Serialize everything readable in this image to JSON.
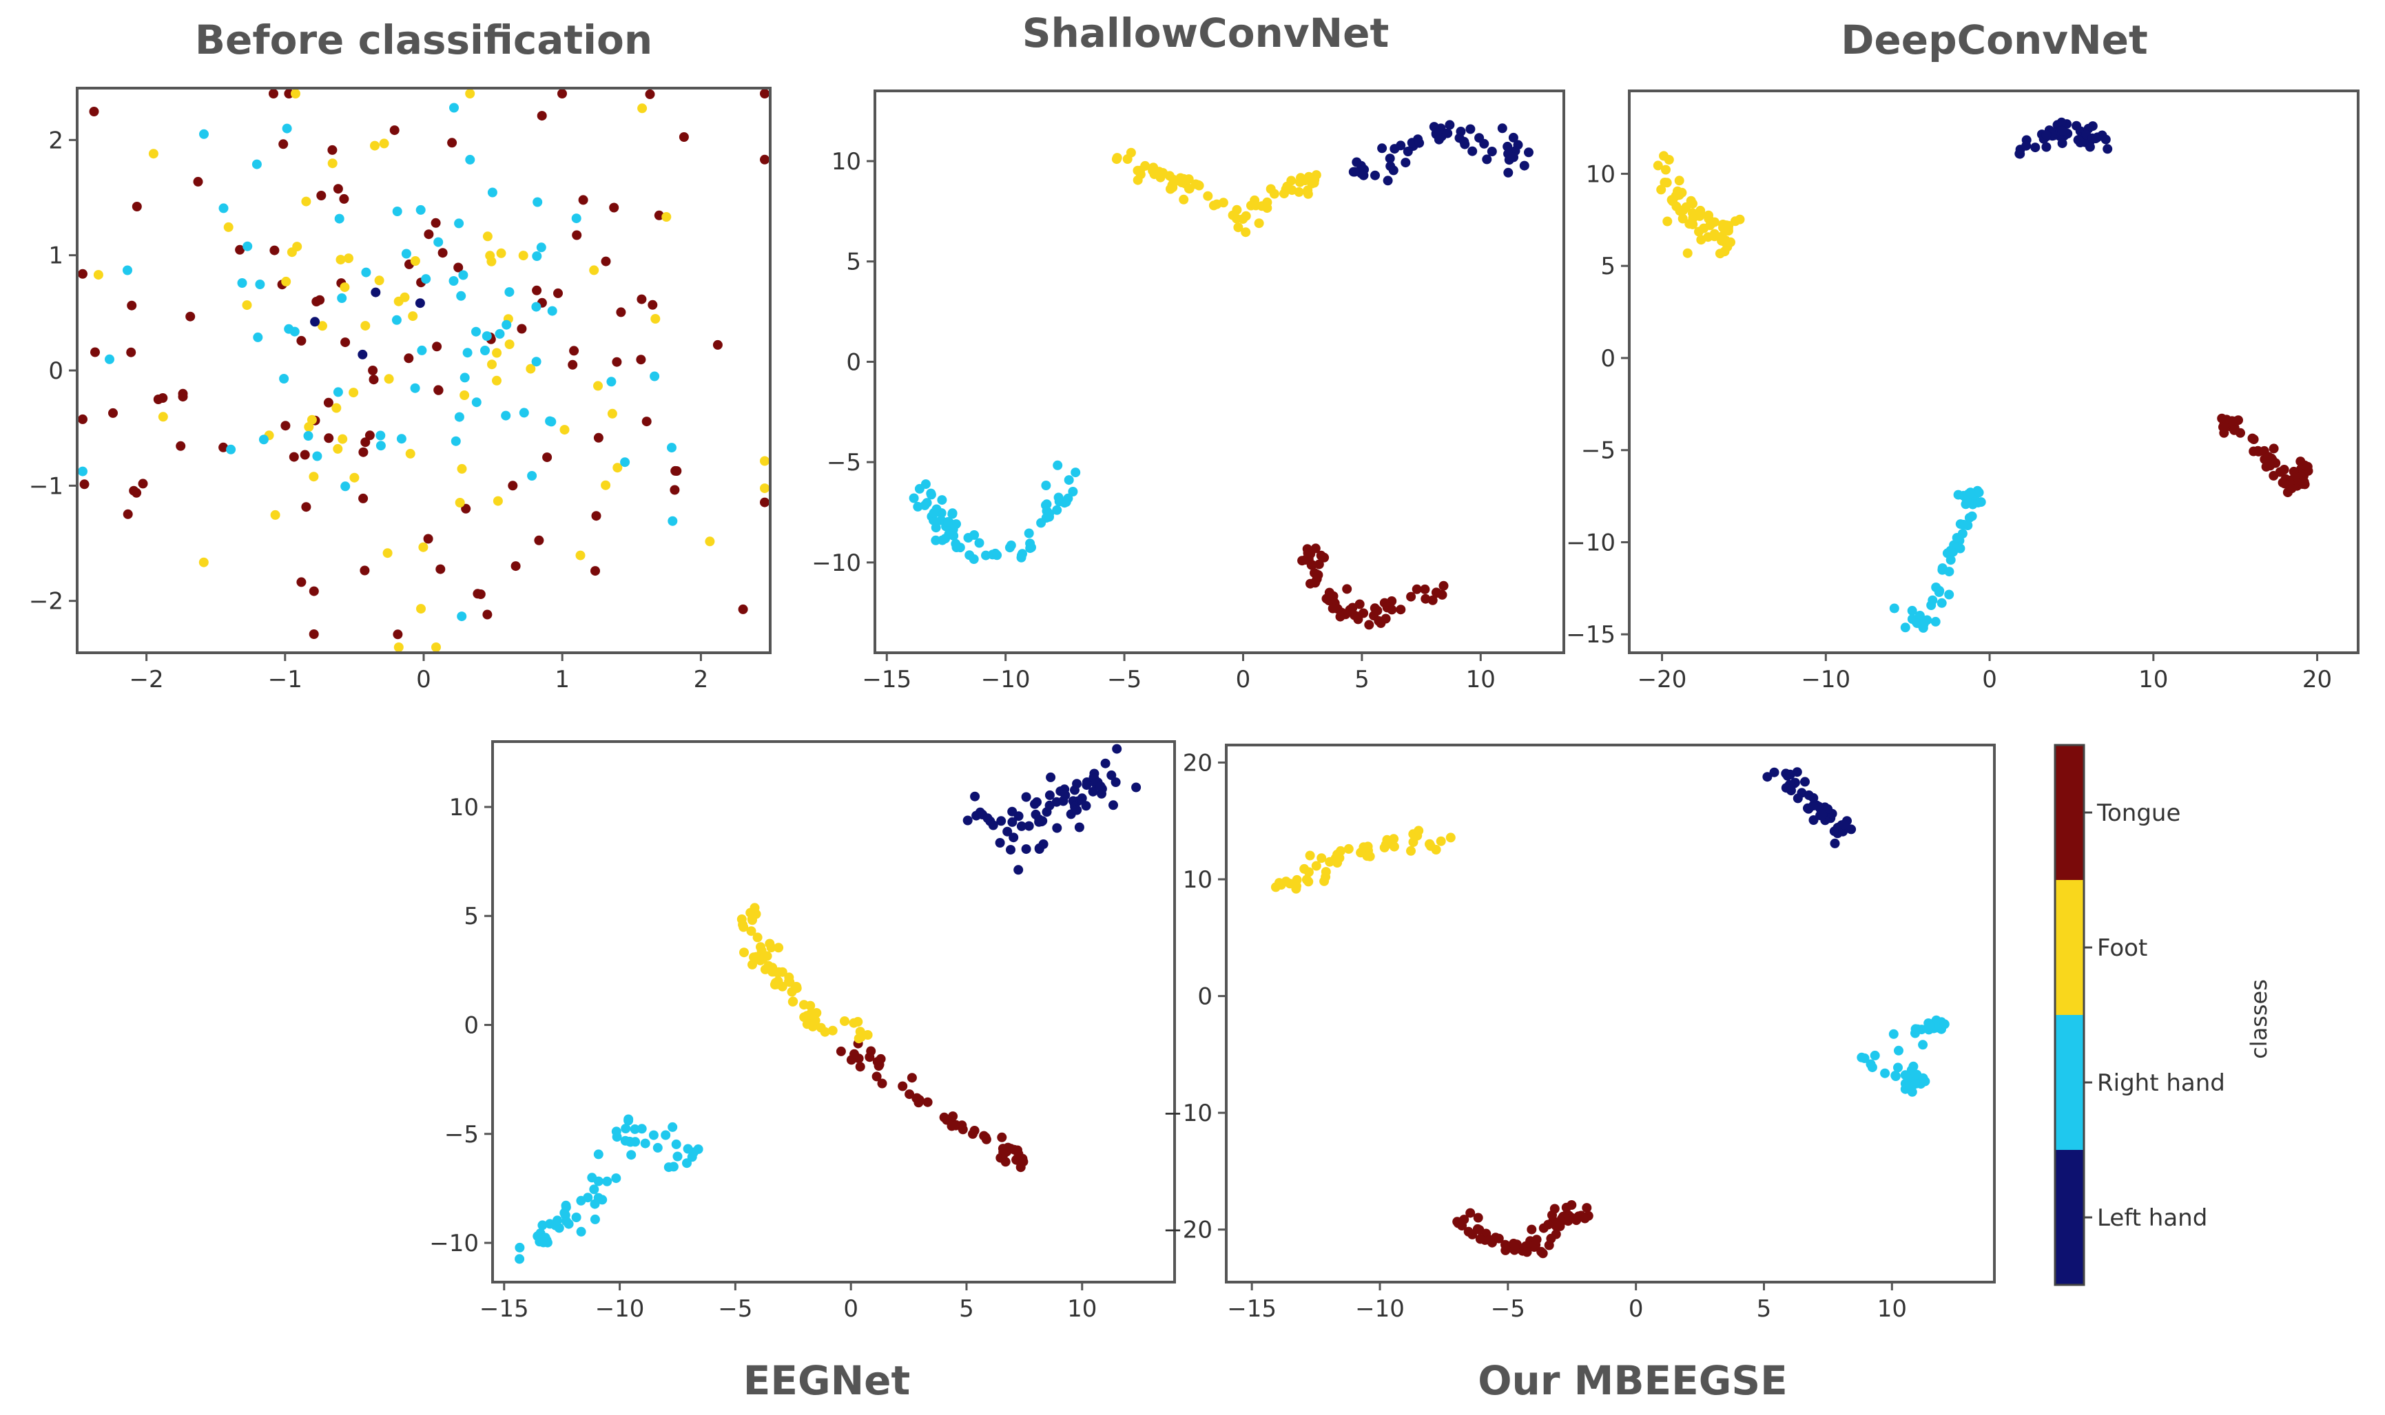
{
  "figure": {
    "legend_title": "classes",
    "classes": [
      {
        "name": "Tongue",
        "color": "#7a0a0a"
      },
      {
        "name": "Foot",
        "color": "#f9d71c"
      },
      {
        "name": "Right hand",
        "color": "#1fc8ee"
      },
      {
        "name": "Left hand",
        "color": "#0d1170"
      }
    ]
  },
  "chart_data": [
    {
      "type": "scatter",
      "title": "Before classification",
      "xlim": [
        -2.5,
        2.5
      ],
      "ylim": [
        -2.45,
        2.45
      ],
      "xticks": [
        -2,
        -1,
        0,
        1,
        2
      ],
      "yticks": [
        -2,
        -1,
        0,
        1,
        2
      ],
      "series": [
        {
          "name": "Tongue",
          "clusters": [
            {
              "cx": 0,
              "cy": 0,
              "sx": 1.3,
              "sy": 1.25,
              "n": 110
            }
          ]
        },
        {
          "name": "Foot",
          "clusters": [
            {
              "cx": 0,
              "cy": 0,
              "sx": 1.1,
              "sy": 1.1,
              "n": 70
            }
          ]
        },
        {
          "name": "Right hand",
          "clusters": [
            {
              "cx": 0,
              "cy": 0,
              "sx": 1.05,
              "sy": 1.05,
              "n": 70
            }
          ]
        },
        {
          "name": "Left hand",
          "clusters": [
            {
              "cx": -0.3,
              "cy": 0.3,
              "sx": 0.3,
              "sy": 0.3,
              "n": 4
            }
          ]
        }
      ]
    },
    {
      "type": "scatter",
      "title": "ShallowConvNet",
      "xlim": [
        -15.5,
        13.5
      ],
      "ylim": [
        -14.5,
        13.5
      ],
      "xticks": [
        -15,
        -10,
        -5,
        0,
        5,
        10
      ],
      "yticks": [
        -10,
        -5,
        0,
        5,
        10
      ],
      "series": [
        {
          "name": "Foot",
          "path": [
            [
              -5.5,
              10.2
            ],
            [
              -3.5,
              9.3
            ],
            [
              -2,
              8.5
            ],
            [
              0,
              7
            ],
            [
              1.5,
              8.5
            ],
            [
              3,
              9.2
            ]
          ],
          "spread": 0.5,
          "n": 70
        },
        {
          "name": "Left hand",
          "path": [
            [
              3.5,
              9.2
            ],
            [
              6,
              9.8
            ],
            [
              8,
              11.5
            ],
            [
              10,
              10.8
            ],
            [
              12,
              10.3
            ]
          ],
          "spread": 0.6,
          "n": 50
        },
        {
          "name": "Right hand",
          "path": [
            [
              -13.5,
              -6
            ],
            [
              -12.5,
              -8.5
            ],
            [
              -10.5,
              -9.8
            ],
            [
              -8.5,
              -9
            ],
            [
              -7.2,
              -5.2
            ]
          ],
          "spread": 0.5,
          "n": 70
        },
        {
          "name": "Tongue",
          "path": [
            [
              2.8,
              -9.5
            ],
            [
              4,
              -12.5
            ],
            [
              6,
              -12.5
            ],
            [
              8.5,
              -11.3
            ]
          ],
          "spread": 0.45,
          "n": 60
        }
      ]
    },
    {
      "type": "scatter",
      "title": "DeepConvNet",
      "xlim": [
        -22,
        22.5
      ],
      "ylim": [
        -16,
        14.5
      ],
      "xticks": [
        -20,
        -10,
        0,
        10,
        20
      ],
      "yticks": [
        -15,
        -10,
        -5,
        0,
        5,
        10
      ],
      "series": [
        {
          "name": "Foot",
          "path": [
            [
              -20,
              10.5
            ],
            [
              -18.5,
              8
            ],
            [
              -17,
              6.5
            ],
            [
              -15.5,
              7
            ]
          ],
          "spread": 0.7,
          "n": 60
        },
        {
          "name": "Left hand",
          "path": [
            [
              1.5,
              11
            ],
            [
              4,
              12.5
            ],
            [
              7,
              11.8
            ]
          ],
          "spread": 0.6,
          "n": 45
        },
        {
          "name": "Tongue",
          "path": [
            [
              14,
              -3
            ],
            [
              16,
              -4.5
            ],
            [
              18.5,
              -7
            ],
            [
              19.5,
              -5.5
            ]
          ],
          "spread": 0.45,
          "n": 55
        },
        {
          "name": "Right hand",
          "path": [
            [
              -5.5,
              -14
            ],
            [
              -3.5,
              -14.5
            ],
            [
              -2.5,
              -11
            ],
            [
              -1.5,
              -9
            ],
            [
              -1,
              -7
            ]
          ],
          "spread": 0.5,
          "n": 55
        }
      ]
    },
    {
      "type": "scatter",
      "title": "EEGNet",
      "xlim": [
        -15.5,
        14
      ],
      "ylim": [
        -11.8,
        13
      ],
      "xticks": [
        -15,
        -10,
        -5,
        0,
        5,
        10
      ],
      "yticks": [
        -10,
        -5,
        0,
        5,
        10
      ],
      "series": [
        {
          "name": "Left hand",
          "path": [
            [
              5,
              10
            ],
            [
              7,
              9
            ],
            [
              9,
              10.5
            ],
            [
              12,
              11.5
            ],
            [
              7,
              7.5
            ]
          ],
          "spread": 0.7,
          "n": 70
        },
        {
          "name": "Foot",
          "path": [
            [
              -4.5,
              5.5
            ],
            [
              -4,
              3.5
            ],
            [
              -3,
              2
            ],
            [
              -1.5,
              0
            ],
            [
              0.8,
              -0.5
            ]
          ],
          "spread": 0.45,
          "n": 65
        },
        {
          "name": "Tongue",
          "path": [
            [
              0,
              -0.8
            ],
            [
              2.5,
              -3
            ],
            [
              4.5,
              -4.5
            ],
            [
              6.5,
              -5.8
            ],
            [
              7.5,
              -6.3
            ]
          ],
          "spread": 0.4,
          "n": 55
        },
        {
          "name": "Right hand",
          "path": [
            [
              -14,
              -10
            ],
            [
              -12,
              -9
            ],
            [
              -10,
              -6.5
            ],
            [
              -9.5,
              -4.5
            ],
            [
              -6.5,
              -6.5
            ]
          ],
          "spread": 0.7,
          "n": 60
        }
      ]
    },
    {
      "type": "scatter",
      "title": "Our MBEEGSE",
      "xlim": [
        -16,
        14
      ],
      "ylim": [
        -24.5,
        21.5
      ],
      "xticks": [
        -15,
        -10,
        -5,
        0,
        5,
        10
      ],
      "yticks": [
        -20,
        -10,
        0,
        10,
        20
      ],
      "series": [
        {
          "name": "Foot",
          "path": [
            [
              -14,
              9
            ],
            [
              -12,
              11.5
            ],
            [
              -10,
              13
            ],
            [
              -7,
              13.5
            ]
          ],
          "spread": 0.7,
          "n": 50
        },
        {
          "name": "Left hand",
          "path": [
            [
              5.5,
              19.5
            ],
            [
              6.5,
              17
            ],
            [
              7.5,
              15.5
            ],
            [
              8,
              14
            ]
          ],
          "spread": 0.5,
          "n": 45
        },
        {
          "name": "Right hand",
          "path": [
            [
              8.5,
              -5
            ],
            [
              10,
              -6.5
            ],
            [
              11,
              -7.5
            ],
            [
              10.5,
              -3
            ],
            [
              12,
              -2.5
            ]
          ],
          "spread": 0.5,
          "n": 50
        },
        {
          "name": "Tongue",
          "path": [
            [
              -7,
              -19
            ],
            [
              -5.5,
              -21
            ],
            [
              -4,
              -22
            ],
            [
              -3,
              -19
            ],
            [
              -2,
              -18.5
            ]
          ],
          "spread": 0.55,
          "n": 65
        }
      ]
    }
  ]
}
